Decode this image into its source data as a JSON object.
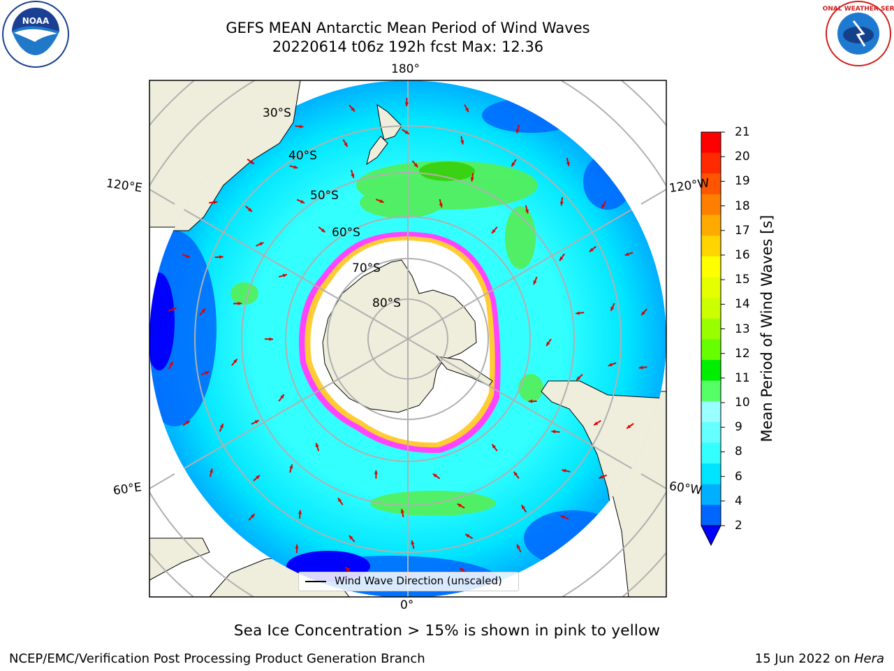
{
  "header": {
    "title_line1": "GEFS MEAN Antarctic Mean Period of Wind Waves",
    "title_line2": "20220614 t06z 192h fcst   Max: 12.36"
  },
  "logos": {
    "left": {
      "icon": "noaa-logo",
      "text": "NOAA"
    },
    "right": {
      "icon": "nws-logo",
      "text": "NATIONAL WEATHER SERVICE"
    }
  },
  "map": {
    "projection": "south-polar-stereographic",
    "longitude_labels": {
      "top": "180°",
      "bottom": "0°",
      "left_upper": "120°E",
      "left_lower": "60°E",
      "right_upper": "120°W",
      "right_lower": "60°W"
    },
    "latitude_labels": [
      "30°S",
      "40°S",
      "50°S",
      "60°S",
      "70°S",
      "80°S"
    ],
    "colors": {
      "land": "#efeedc",
      "ice_edge": [
        "#ff33ff",
        "#ff66aa",
        "#ffdd55"
      ],
      "arrows": "#ff0000",
      "gridlines": "#b0b0b0"
    }
  },
  "legend": {
    "label": "Wind Wave Direction (unscaled)"
  },
  "colorbar": {
    "label": "Mean Period of Wind Waves [s]",
    "ticks": [
      "21",
      "20",
      "19",
      "18",
      "17",
      "16",
      "15",
      "14",
      "13",
      "12",
      "11",
      "10",
      "9",
      "8",
      "6",
      "4",
      "2"
    ],
    "colors": [
      "#ff0000",
      "#ff2a00",
      "#ff5500",
      "#ff8000",
      "#ffaa00",
      "#ffd400",
      "#ffff00",
      "#e6ff00",
      "#ccff00",
      "#99ff00",
      "#66ff00",
      "#00ee00",
      "#55ff66",
      "#99ffff",
      "#66ffff",
      "#33ffff",
      "#00e5ff",
      "#00b0ff",
      "#0066ff"
    ],
    "under_color": "#0000ff"
  },
  "footer": {
    "caption": "Sea Ice Concentration > 15% is shown in pink to yellow",
    "left": "NCEP/EMC/Verification Post Processing Product Generation Branch",
    "right_date": "15 Jun 2022 on ",
    "right_host": "Hera"
  }
}
